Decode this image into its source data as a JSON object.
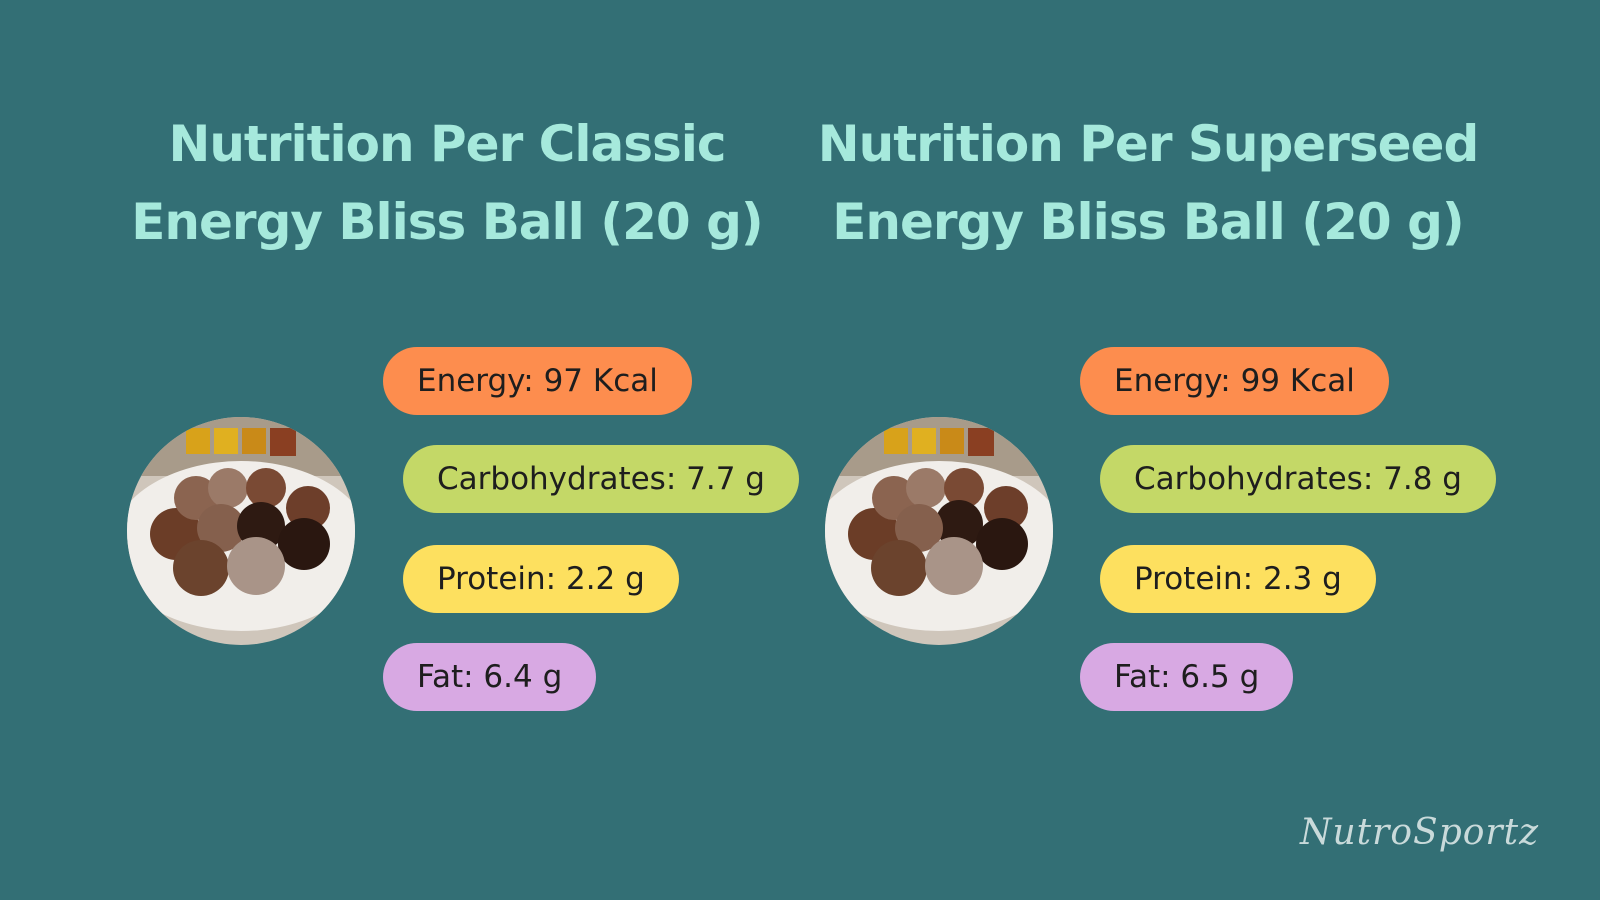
{
  "panels": [
    {
      "title_lines": [
        "Nutrition Per Classic",
        "Energy Bliss Ball (20 g)"
      ],
      "items": [
        "Energy: 97 Kcal",
        "Carbohydrates: 7.7 g",
        "Protein: 2.2 g",
        "Fat: 6.4 g"
      ]
    },
    {
      "title_lines": [
        "Nutrition Per Superseed",
        "Energy Bliss Ball (20 g)"
      ],
      "items": [
        "Energy: 99 Kcal",
        "Carbohydrates: 7.8 g",
        "Protein: 2.3 g",
        "Fat: 6.5 g"
      ]
    }
  ],
  "brand": "NutroSportz"
}
